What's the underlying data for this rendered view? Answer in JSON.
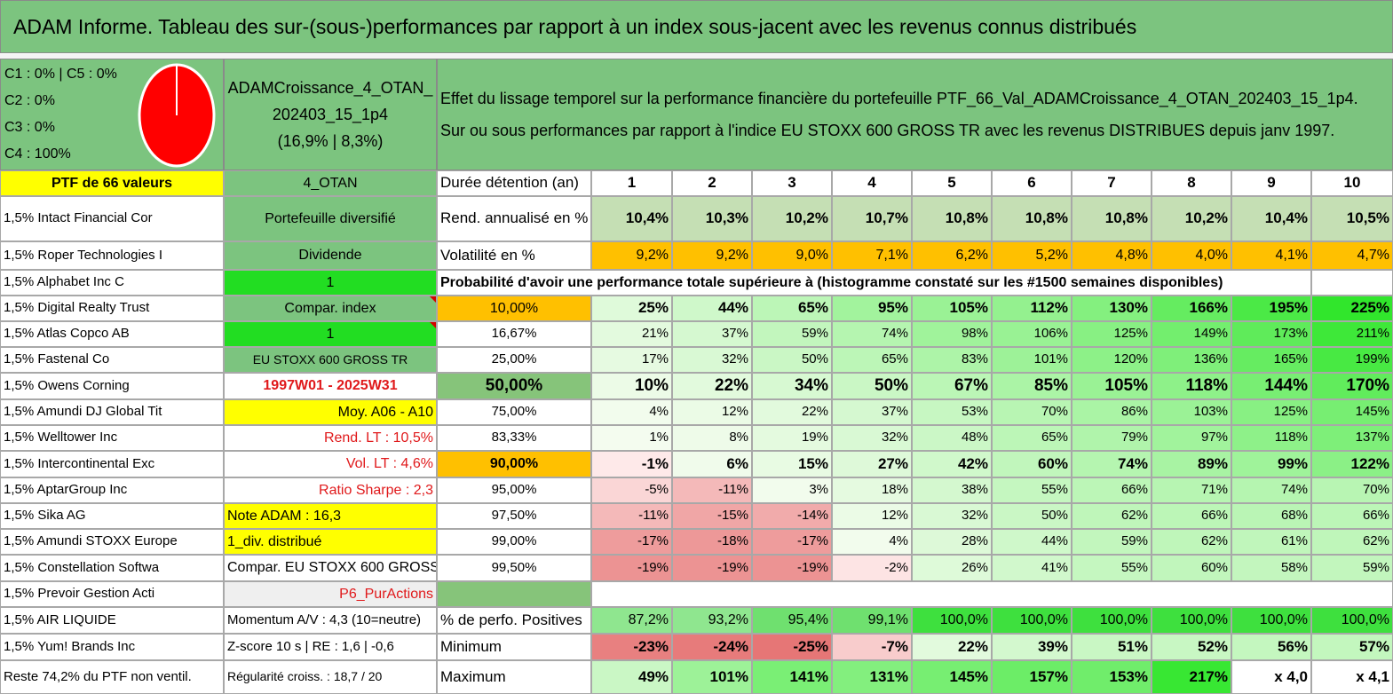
{
  "title": "ADAM Informe. Tableau des sur-(sous-)performances par rapport à un index sous-jacent avec les revenus connus distribués",
  "header": {
    "classes": [
      "C1 : 0% | C5 : 0%",
      "C2 : 0%",
      "C3 : 0%",
      "C4 : 100%"
    ],
    "portfolio": [
      "ADAMCroissance_4_OTAN_",
      "202403_15_1p4",
      "(16,9% | 8,3%)"
    ],
    "description": [
      "Effet du lissage temporel sur la performance financière du portefeuille PTF_66_Val_ADAMCroissance_4_OTAN_202403_15_1p4.",
      "Sur ou sous performances par rapport à l'indice EU STOXX 600 GROSS TR avec les revenus DISTRIBUES depuis janv 1997."
    ],
    "pie_color": "#ff0000"
  },
  "colA": [
    "PTF de 66 valeurs",
    "1,5% Intact Financial Cor",
    "1,5% Roper Technologies I",
    "1,5% Alphabet Inc C",
    "1,5% Digital Realty Trust",
    "1,5% Atlas Copco AB",
    "1,5% Fastenal Co",
    "1,5% Owens Corning",
    "1,5% Amundi DJ Global Tit",
    "1,5% Welltower Inc",
    "1,5% Intercontinental Exc",
    "1,5% AptarGroup Inc",
    "1,5% Sika AG",
    "1,5% Amundi STOXX Europe",
    "1,5% Constellation Softwa",
    "1,5% Prevoir Gestion Acti",
    "1,5% AIR LIQUIDE",
    "1,5% Yum! Brands Inc",
    "Reste 74,2% du PTF non ventil."
  ],
  "colB": [
    "4_OTAN",
    "Portefeuille diversifié",
    "Dividende",
    "1",
    "Compar. index",
    "1",
    "EU STOXX 600 GROSS TR",
    "1997W01 - 2025W31",
    "Moy. A06 - A10",
    "Rend. LT : 10,5%",
    "Vol. LT : 4,6%",
    "Ratio Sharpe : 2,3",
    "Note ADAM : 16,3",
    "1_div. distribué",
    "Compar. EU STOXX 600 GROSS TR",
    "P6_PurActions",
    "Momentum A/V : 4,3 (10=neutre)",
    "Z-score 10 s | RE : 1,6 | -0,6",
    "Régularité croiss. : 18,7 / 20"
  ],
  "labels": {
    "duree": "Durée détention (an)",
    "rend": "Rend. annualisé en %",
    "vol": "Volatilité en %",
    "prob": "Probabilité d'avoir une performance totale supérieure à (histogramme constaté sur les #1500 semaines disponibles)",
    "pos": "% de perfo. Positives",
    "min": "Minimum",
    "max": "Maximum"
  },
  "years": [
    "1",
    "2",
    "3",
    "4",
    "5",
    "6",
    "7",
    "8",
    "9",
    "10"
  ],
  "rend": [
    "10,4%",
    "10,3%",
    "10,2%",
    "10,7%",
    "10,8%",
    "10,8%",
    "10,8%",
    "10,2%",
    "10,4%",
    "10,5%"
  ],
  "vol": [
    "9,2%",
    "9,2%",
    "9,0%",
    "7,1%",
    "6,2%",
    "5,2%",
    "4,8%",
    "4,0%",
    "4,1%",
    "4,7%"
  ],
  "quantiles": [
    "10,00%",
    "16,67%",
    "25,00%",
    "50,00%",
    "75,00%",
    "83,33%",
    "90,00%",
    "95,00%",
    "97,50%",
    "99,00%",
    "99,50%"
  ],
  "grid": [
    [
      "25%",
      "44%",
      "65%",
      "95%",
      "105%",
      "112%",
      "130%",
      "166%",
      "195%",
      "225%"
    ],
    [
      "21%",
      "37%",
      "59%",
      "74%",
      "98%",
      "106%",
      "125%",
      "149%",
      "173%",
      "211%"
    ],
    [
      "17%",
      "32%",
      "50%",
      "65%",
      "83%",
      "101%",
      "120%",
      "136%",
      "165%",
      "199%"
    ],
    [
      "10%",
      "22%",
      "34%",
      "50%",
      "67%",
      "85%",
      "105%",
      "118%",
      "144%",
      "170%"
    ],
    [
      "4%",
      "12%",
      "22%",
      "37%",
      "53%",
      "70%",
      "86%",
      "103%",
      "125%",
      "145%"
    ],
    [
      "1%",
      "8%",
      "19%",
      "32%",
      "48%",
      "65%",
      "79%",
      "97%",
      "118%",
      "137%"
    ],
    [
      "-1%",
      "6%",
      "15%",
      "27%",
      "42%",
      "60%",
      "74%",
      "89%",
      "99%",
      "122%"
    ],
    [
      "-5%",
      "-11%",
      "3%",
      "18%",
      "38%",
      "55%",
      "66%",
      "71%",
      "74%",
      "70%"
    ],
    [
      "-11%",
      "-15%",
      "-14%",
      "12%",
      "32%",
      "50%",
      "62%",
      "66%",
      "68%",
      "66%"
    ],
    [
      "-17%",
      "-18%",
      "-17%",
      "4%",
      "28%",
      "44%",
      "59%",
      "62%",
      "61%",
      "62%"
    ],
    [
      "-19%",
      "-19%",
      "-19%",
      "-2%",
      "26%",
      "41%",
      "55%",
      "60%",
      "58%",
      "59%"
    ]
  ],
  "pos": [
    "87,2%",
    "93,2%",
    "95,4%",
    "99,1%",
    "100,0%",
    "100,0%",
    "100,0%",
    "100,0%",
    "100,0%",
    "100,0%"
  ],
  "min": [
    "-23%",
    "-24%",
    "-25%",
    "-7%",
    "22%",
    "39%",
    "51%",
    "52%",
    "56%",
    "57%"
  ],
  "max": [
    "49%",
    "101%",
    "141%",
    "131%",
    "145%",
    "157%",
    "153%",
    "217%",
    "x 4,0",
    "x 4,1"
  ],
  "colors": {
    "green_header": "#7cc47f",
    "yellow": "#ffff00",
    "bright_green": "#22dd22",
    "orange": "#ffc000",
    "mid_green": "#86c47a",
    "light_green": "#c5dfb4",
    "red_text": "#e0191b"
  }
}
